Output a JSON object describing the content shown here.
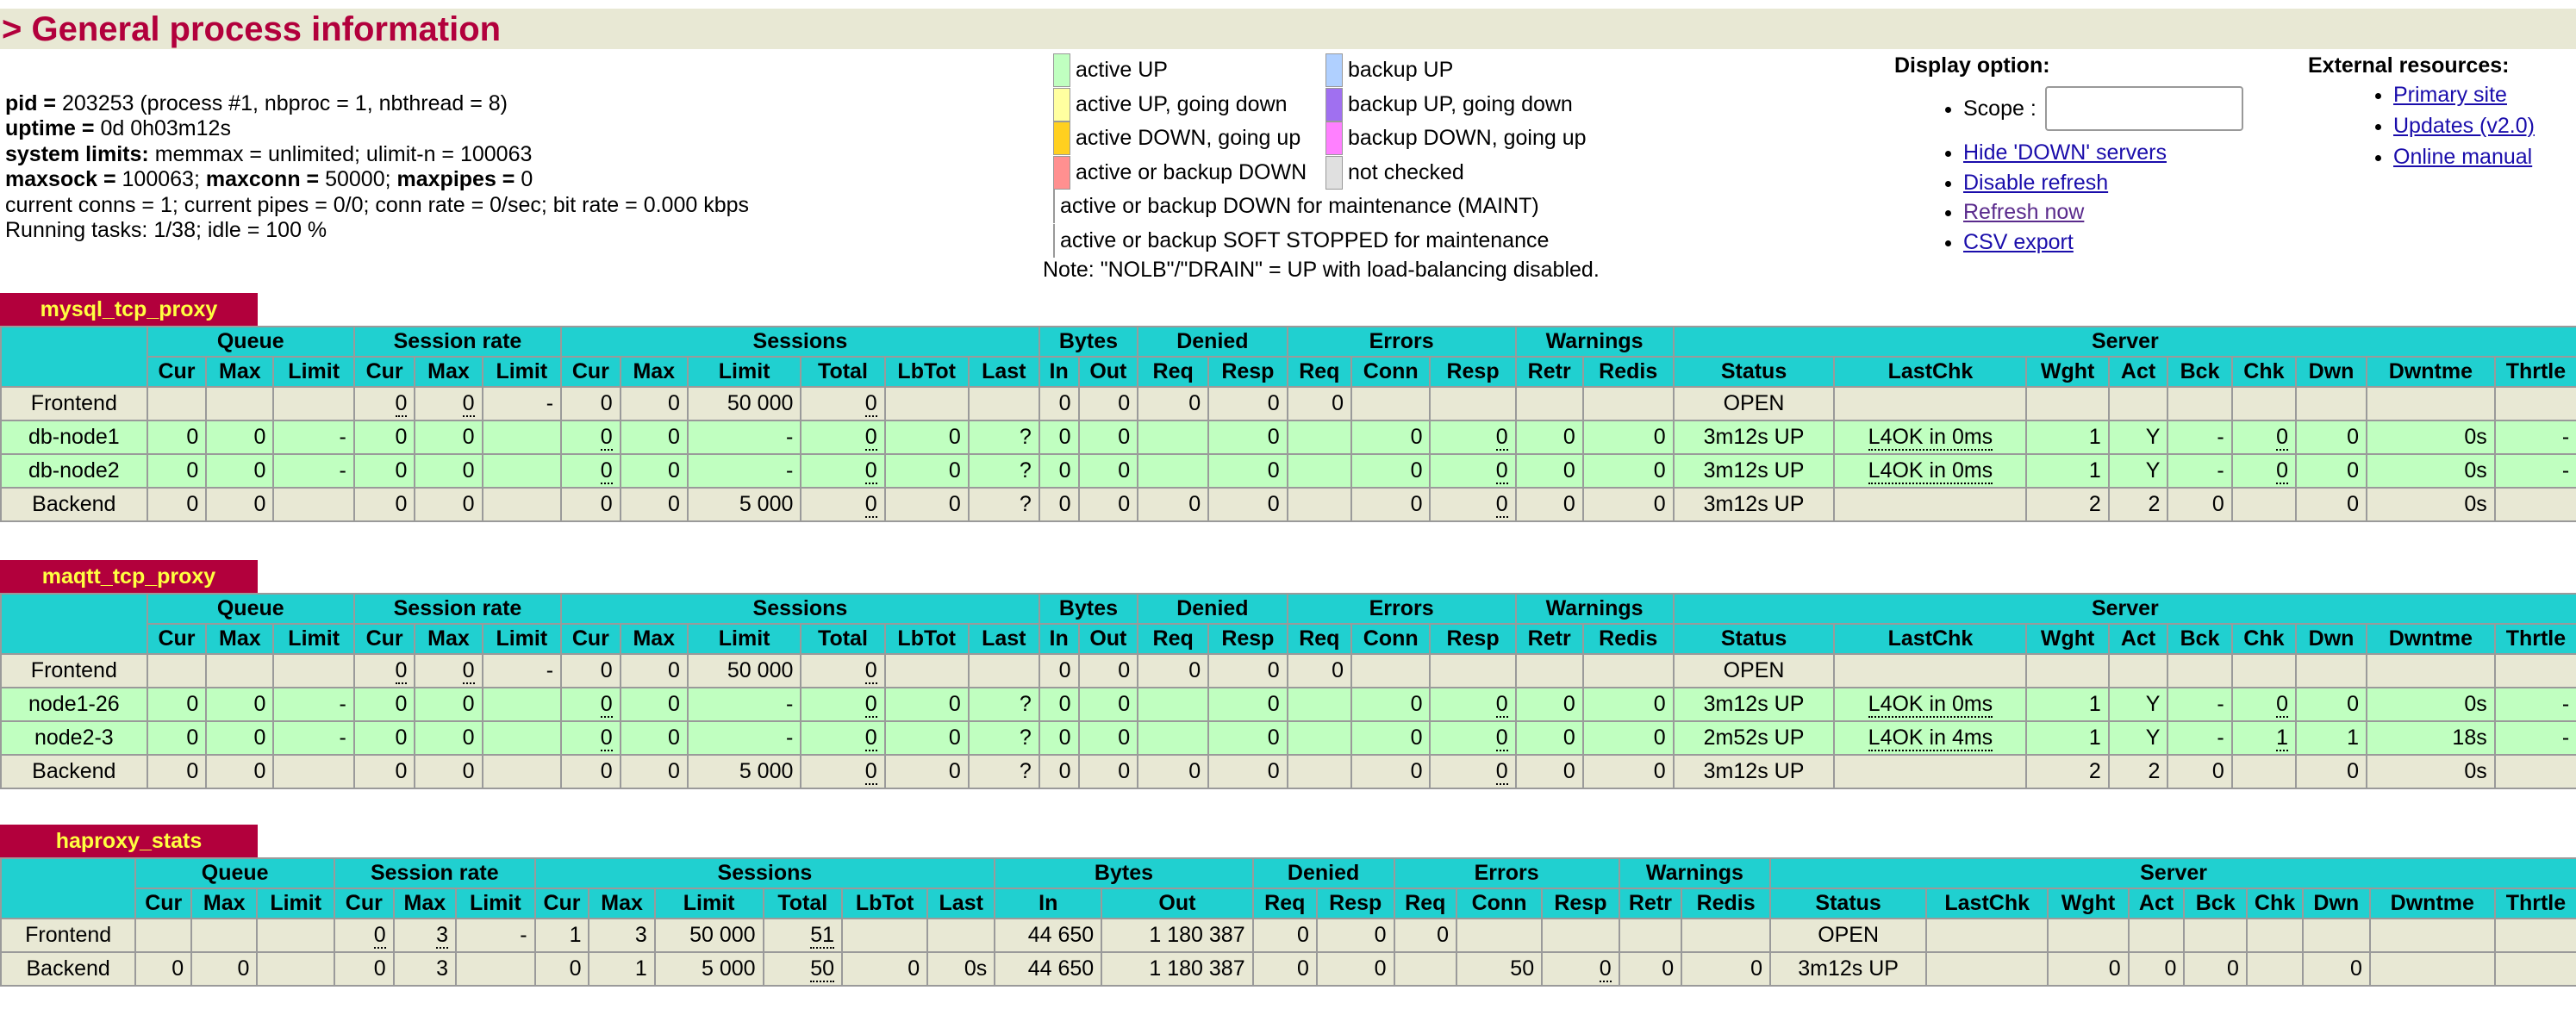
{
  "header": {
    "title": "> General process information"
  },
  "info": {
    "lines": [
      [
        {
          "text": "pid = ",
          "bold": true
        },
        {
          "text": "203253 (process #1, nbproc = 1, nbthread = 8)",
          "bold": false
        }
      ],
      [
        {
          "text": "uptime = ",
          "bold": true
        },
        {
          "text": "0d 0h03m12s",
          "bold": false
        }
      ],
      [
        {
          "text": "system limits:",
          "bold": true
        },
        {
          "text": " memmax = unlimited; ulimit-n = 100063",
          "bold": false
        }
      ],
      [
        {
          "text": "maxsock = ",
          "bold": true
        },
        {
          "text": "100063; ",
          "bold": false
        },
        {
          "text": "maxconn = ",
          "bold": true
        },
        {
          "text": "50000; ",
          "bold": false
        },
        {
          "text": "maxpipes = ",
          "bold": true
        },
        {
          "text": "0",
          "bold": false
        }
      ],
      [
        {
          "text": "current conns = 1; current pipes = 0/0; conn rate = 0/sec; bit rate = 0.000 kbps",
          "bold": false
        }
      ],
      [
        {
          "text": "Running tasks: 1/38; idle = 100 %",
          "bold": false
        }
      ]
    ]
  },
  "legend": {
    "items": [
      {
        "label": "active UP",
        "color": "#c0ffc0"
      },
      {
        "label": "active UP, going down",
        "color": "#ffffa0"
      },
      {
        "label": "active DOWN, going up",
        "color": "#ffd020"
      },
      {
        "label": "active or backup DOWN",
        "color": "#ff9090"
      },
      {
        "label": "active or backup DOWN for maintenance (MAINT)",
        "color": "#c07820"
      },
      {
        "label": "active or backup SOFT STOPPED for maintenance",
        "color": "#3fa0ec"
      },
      {
        "label": "backup UP",
        "color": "#b0d0ff"
      },
      {
        "label": "backup UP, going down",
        "color": "#a070f0"
      },
      {
        "label": "backup DOWN, going up",
        "color": "#ff80ff"
      },
      {
        "label": "not checked",
        "color": "#e0e0e0"
      }
    ],
    "note": "Note: \"NOLB\"/\"DRAIN\" = UP with load-balancing disabled."
  },
  "display_option": {
    "title": "Display option:",
    "scope_label": "Scope :",
    "links": [
      "Hide 'DOWN' servers",
      "Disable refresh",
      "Refresh now",
      "CSV export"
    ]
  },
  "external": {
    "title": "External resources:",
    "links": [
      "Primary site",
      "Updates (v2.0)",
      "Online manual"
    ]
  },
  "table_header": {
    "groups": [
      {
        "label": "Queue",
        "columns": [
          "Cur",
          "Max",
          "Limit"
        ]
      },
      {
        "label": "Session rate",
        "columns": [
          "Cur",
          "Max",
          "Limit"
        ]
      },
      {
        "label": "Sessions",
        "columns": [
          "Cur",
          "Max",
          "Limit",
          "Total",
          "LbTot",
          "Last"
        ]
      },
      {
        "label": "Bytes",
        "columns": [
          "In",
          "Out"
        ]
      },
      {
        "label": "Denied",
        "columns": [
          "Req",
          "Resp"
        ]
      },
      {
        "label": "Errors",
        "columns": [
          "Req",
          "Conn",
          "Resp"
        ]
      },
      {
        "label": "Warnings",
        "columns": [
          "Retr",
          "Redis"
        ]
      },
      {
        "label": "Server",
        "columns": [
          "Status",
          "LastChk",
          "Wght",
          "Act",
          "Bck",
          "Chk",
          "Dwn",
          "Dwntme",
          "Thrtle"
        ]
      }
    ]
  },
  "proxies": [
    {
      "name": "mysql_tcp_proxy",
      "rows": [
        [
          "Frontend",
          null,
          null,
          null,
          "0",
          "0",
          "-",
          "0",
          "0",
          "50 000",
          "0",
          null,
          null,
          "0",
          "0",
          "0",
          "0",
          "0",
          null,
          null,
          null,
          null,
          "OPEN",
          null,
          null,
          null,
          null,
          null,
          null,
          null,
          null
        ],
        [
          "db-node1",
          "0",
          "0",
          "-",
          "0",
          "0",
          null,
          "0",
          "0",
          "-",
          "0",
          "0",
          "?",
          "0",
          "0",
          null,
          "0",
          null,
          "0",
          "0",
          "0",
          "0",
          "3m12s UP",
          "L4OK in 0ms",
          "1",
          "Y",
          "-",
          "0",
          "0",
          "0s",
          "-"
        ],
        [
          "db-node2",
          "0",
          "0",
          "-",
          "0",
          "0",
          null,
          "0",
          "0",
          "-",
          "0",
          "0",
          "?",
          "0",
          "0",
          null,
          "0",
          null,
          "0",
          "0",
          "0",
          "0",
          "3m12s UP",
          "L4OK in 0ms",
          "1",
          "Y",
          "-",
          "0",
          "0",
          "0s",
          "-"
        ],
        [
          "Backend",
          "0",
          "0",
          null,
          "0",
          "0",
          null,
          "0",
          "0",
          "5 000",
          "0",
          "0",
          "?",
          "0",
          "0",
          "0",
          "0",
          null,
          "0",
          "0",
          "0",
          "0",
          "3m12s UP",
          null,
          "2",
          "2",
          "0",
          null,
          "0",
          "0s",
          null
        ]
      ]
    },
    {
      "name": "maqtt_tcp_proxy",
      "rows": [
        [
          "Frontend",
          null,
          null,
          null,
          "0",
          "0",
          "-",
          "0",
          "0",
          "50 000",
          "0",
          null,
          null,
          "0",
          "0",
          "0",
          "0",
          "0",
          null,
          null,
          null,
          null,
          "OPEN",
          null,
          null,
          null,
          null,
          null,
          null,
          null,
          null
        ],
        [
          "node1-26",
          "0",
          "0",
          "-",
          "0",
          "0",
          null,
          "0",
          "0",
          "-",
          "0",
          "0",
          "?",
          "0",
          "0",
          null,
          "0",
          null,
          "0",
          "0",
          "0",
          "0",
          "3m12s UP",
          "L4OK in 0ms",
          "1",
          "Y",
          "-",
          "0",
          "0",
          "0s",
          "-"
        ],
        [
          "node2-3",
          "0",
          "0",
          "-",
          "0",
          "0",
          null,
          "0",
          "0",
          "-",
          "0",
          "0",
          "?",
          "0",
          "0",
          null,
          "0",
          null,
          "0",
          "0",
          "0",
          "0",
          "2m52s UP",
          "L4OK in 4ms",
          "1",
          "Y",
          "-",
          "1",
          "1",
          "18s",
          "-"
        ],
        [
          "Backend",
          "0",
          "0",
          null,
          "0",
          "0",
          null,
          "0",
          "0",
          "5 000",
          "0",
          "0",
          "?",
          "0",
          "0",
          "0",
          "0",
          null,
          "0",
          "0",
          "0",
          "0",
          "3m12s UP",
          null,
          "2",
          "2",
          "0",
          null,
          "0",
          "0s",
          null
        ]
      ]
    },
    {
      "name": "haproxy_stats",
      "rows": [
        [
          "Frontend",
          null,
          null,
          null,
          "0",
          "3",
          "-",
          "1",
          "3",
          "50 000",
          "51",
          null,
          null,
          "44 650",
          "1 180 387",
          "0",
          "0",
          "0",
          null,
          null,
          null,
          null,
          "OPEN",
          null,
          null,
          null,
          null,
          null,
          null,
          null,
          null
        ],
        [
          "Backend",
          "0",
          "0",
          null,
          "0",
          "3",
          null,
          "0",
          "1",
          "5 000",
          "50",
          "0",
          "0s",
          "44 650",
          "1 180 387",
          "0",
          "0",
          null,
          "50",
          "0",
          "0",
          "0",
          "3m12s UP",
          null,
          "0",
          "0",
          "0",
          null,
          "0",
          null,
          null
        ]
      ]
    }
  ]
}
